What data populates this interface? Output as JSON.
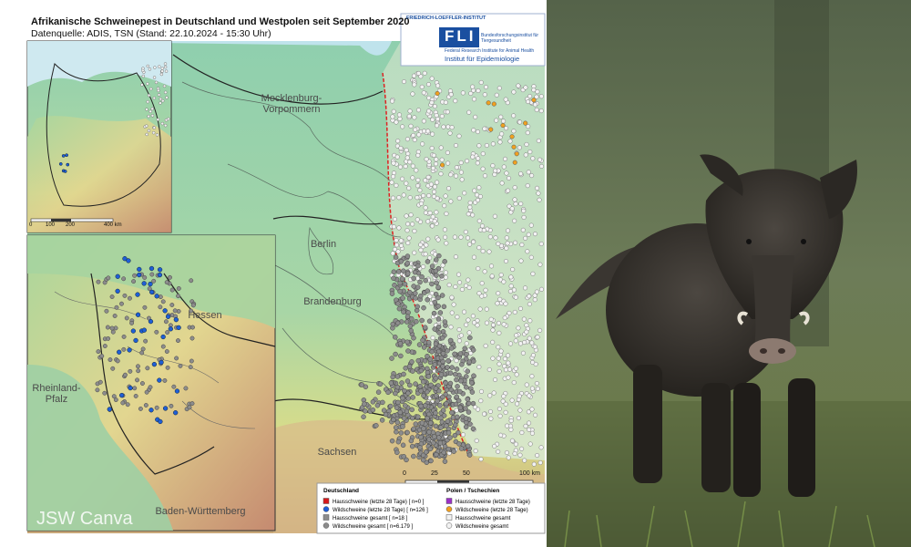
{
  "map": {
    "title": "Afrikanische Schweinepest in Deutschland und Westpolen seit September 2020",
    "source": "Datenquelle: ADIS, TSN (Stand: 22.10.2024 - 15:30 Uhr)",
    "logo": {
      "institute": "FRIEDRICH-LOEFFLER-INSTITUT",
      "acronym": "FLI",
      "name_de": "Bundesforschungsinstitut für Tiergesundheit",
      "name_en": "Federal Research Institute for Animal Health",
      "department": "Institut für Epidemiologie"
    },
    "regions": [
      "Mecklenburg-Vorpommern",
      "Berlin",
      "Brandenburg",
      "Sachsen"
    ],
    "inset_regions": [
      "Hessen",
      "Rheinland-Pfalz",
      "Baden-Württemberg"
    ],
    "scale_main": [
      "0",
      "25",
      "50",
      "100 km"
    ],
    "scale_overview": [
      "0",
      "100",
      "200",
      "400 km"
    ],
    "legend": {
      "germany": {
        "title": "Deutschland",
        "items": [
          {
            "label": "Hausschweine (letzte 28 Tage) [ n=0 ]",
            "color": "#d7191c",
            "shape": "square"
          },
          {
            "label": "Wildschweine (letzte 28 Tage) [ n=126 ]",
            "color": "#1f5fd6",
            "shape": "circle"
          },
          {
            "label": "Hausschweine gesamt [ n=18 ]",
            "color": "#8c8c8c",
            "shape": "square"
          },
          {
            "label": "Wildschweine gesamt [ n=6.179 ]",
            "color": "#8c8c8c",
            "shape": "circle"
          }
        ]
      },
      "poland": {
        "title": "Polen / Tschechien",
        "items": [
          {
            "label": "Hausschweine (letzte 28 Tage)",
            "color": "#9b30c8",
            "shape": "square"
          },
          {
            "label": "Wildschweine (letzte 28 Tage)",
            "color": "#f0a020",
            "shape": "circle"
          },
          {
            "label": "Hausschweine gesamt",
            "color": "#f2f2f2",
            "shape": "square"
          },
          {
            "label": "Wildschweine gesamt",
            "color": "#f2f2f2",
            "shape": "circle"
          }
        ]
      }
    }
  },
  "photo": {
    "watermark": "JSW Canva"
  }
}
